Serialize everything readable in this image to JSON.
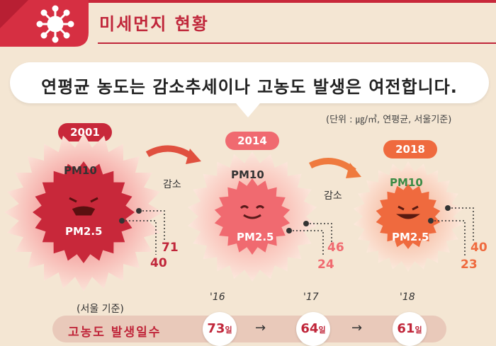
{
  "header": {
    "title": "미세먼지 현황"
  },
  "headline": "연평균 농도는 감소추세이나 고농도 발생은 여전합니다.",
  "unit_note": "(단위 : ㎍/㎥, 연평균, 서울기준)",
  "labels": {
    "pm10": "PM10",
    "pm25": "PM2.5",
    "decrease": "감소"
  },
  "years": [
    {
      "year": "2001",
      "pm10": "71",
      "pm25": "40",
      "color": "#c8283a"
    },
    {
      "year": "2014",
      "pm10": "46",
      "pm25": "24",
      "color": "#f06a70"
    },
    {
      "year": "2018",
      "pm10": "40",
      "pm25": "23",
      "color": "#ef6a3e"
    }
  ],
  "bottom": {
    "basis_note": "(서울 기준)",
    "label": "고농도 발생일수",
    "unit": "일",
    "arrow": "→",
    "items": [
      {
        "year": "'16",
        "days": "73"
      },
      {
        "year": "'17",
        "days": "64"
      },
      {
        "year": "'18",
        "days": "61"
      }
    ]
  },
  "colors": {
    "background": "#f4e6d3",
    "accent": "#c0263a",
    "pm10_2018_label": "#3b8b45"
  },
  "icons": {
    "header": "virus-icon"
  }
}
